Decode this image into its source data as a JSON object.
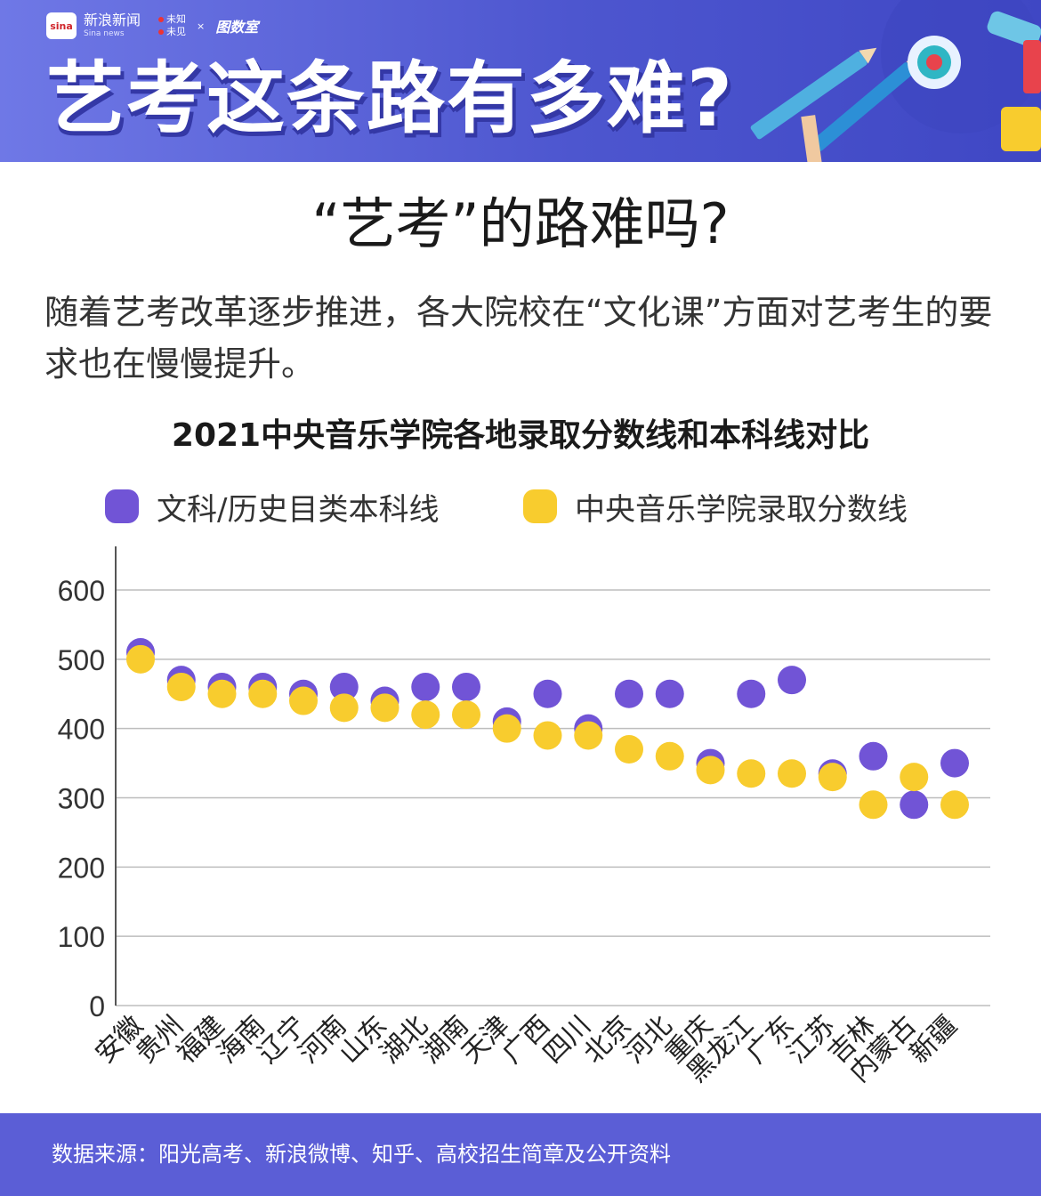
{
  "header": {
    "brand_name": "新浪新闻",
    "brand_en": "Sina news",
    "brand_logo_text": "sina",
    "brand_sub_1": "未知",
    "brand_sub_2": "未见",
    "brand_x": "×",
    "brand_third": "图数室",
    "title": "艺考这条路有多难?"
  },
  "subtitle": "“艺考”的路难吗?",
  "description": "随着艺考改革逐步推进，各大院校在“文化课”方面对艺考生的要求也在慢慢提升。",
  "colors": {
    "header_bg": "#5a63d8",
    "purple": "#7154d6",
    "yellow": "#f8cc2e",
    "footer_bg": "#5b5ed6"
  },
  "chart_data": {
    "type": "scatter",
    "title": "2021中央音乐学院各地录取分数线和本科线对比",
    "categories": [
      "安徽",
      "贵州",
      "福建",
      "海南",
      "辽宁",
      "河南",
      "山东",
      "湖北",
      "湖南",
      "天津",
      "广西",
      "四川",
      "北京",
      "河北",
      "重庆",
      "黑龙江",
      "广东",
      "江苏",
      "吉林",
      "内蒙古",
      "新疆"
    ],
    "series": [
      {
        "name": "文科/历史目类本科线",
        "color": "#7154d6",
        "values": [
          510,
          470,
          460,
          460,
          450,
          460,
          440,
          460,
          460,
          410,
          450,
          400,
          450,
          450,
          350,
          450,
          470,
          335,
          360,
          290,
          350
        ]
      },
      {
        "name": "中央音乐学院录取分数线",
        "color": "#f8cc2e",
        "values": [
          500,
          460,
          450,
          450,
          440,
          430,
          430,
          420,
          420,
          400,
          390,
          390,
          370,
          360,
          340,
          335,
          335,
          330,
          290,
          330,
          290
        ]
      }
    ],
    "ylim": [
      0,
      650
    ],
    "yticks": [
      0,
      100,
      200,
      300,
      400,
      500,
      600
    ],
    "grid": true,
    "legend_position": "top"
  },
  "footer": {
    "source": "数据来源：阳光高考、新浪微博、知乎、高校招生简章及公开资料"
  }
}
